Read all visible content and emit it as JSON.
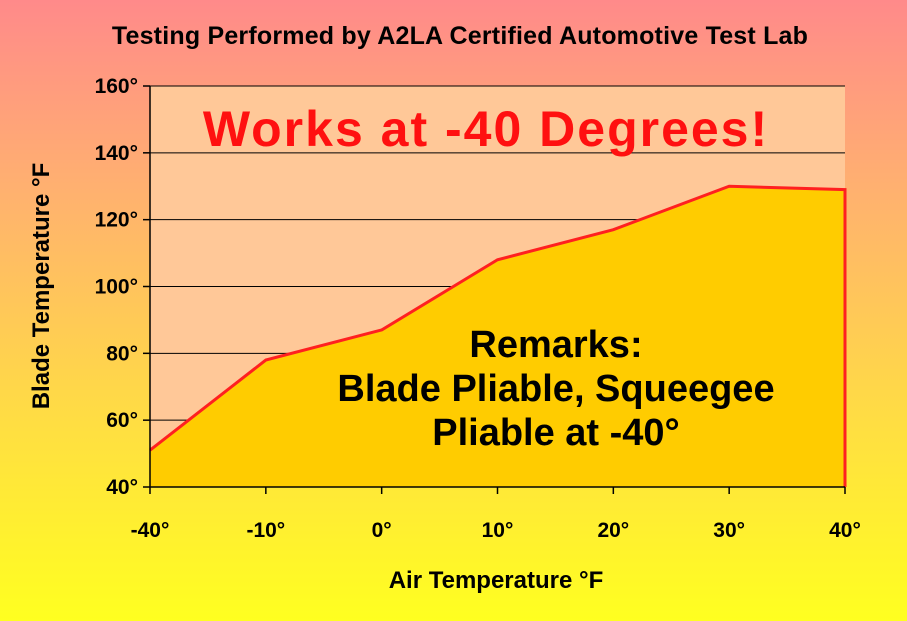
{
  "chart_data": {
    "type": "area",
    "title": "Testing Performed by A2LA Certified Automotive Test Lab",
    "xlabel": "Air Temperature °F",
    "ylabel": "Blade Temperature °F",
    "x_tick_labels": [
      "-40°",
      "-10°",
      "0°",
      "10°",
      "20°",
      "30°",
      "40°"
    ],
    "y_tick_labels": [
      "40°",
      "60°",
      "80°",
      "100°",
      "120°",
      "140°",
      "160°"
    ],
    "y_ticks": [
      40,
      60,
      80,
      100,
      120,
      140,
      160
    ],
    "ylim": [
      40,
      160
    ],
    "grid": true,
    "series": [
      {
        "points": [
          {
            "x": "-40°",
            "y": 51
          },
          {
            "x": "-10°",
            "y": 78
          },
          {
            "x": "0°",
            "y": 87
          },
          {
            "x": "10°",
            "y": 108
          },
          {
            "x": "20°",
            "y": 117
          },
          {
            "x": "30°",
            "y": 130
          },
          {
            "x": "40°",
            "y": 129
          }
        ]
      }
    ],
    "annotations": {
      "headline": "Works at -40 Degrees!",
      "remarks": [
        "Remarks:",
        "Blade Pliable, Squeegee",
        "Pliable at -40°"
      ]
    },
    "colors": {
      "plot_bg": "#ffc898",
      "area_fill": "#ffcc00",
      "line": "#ff2020",
      "headline": "#ff1010"
    }
  }
}
